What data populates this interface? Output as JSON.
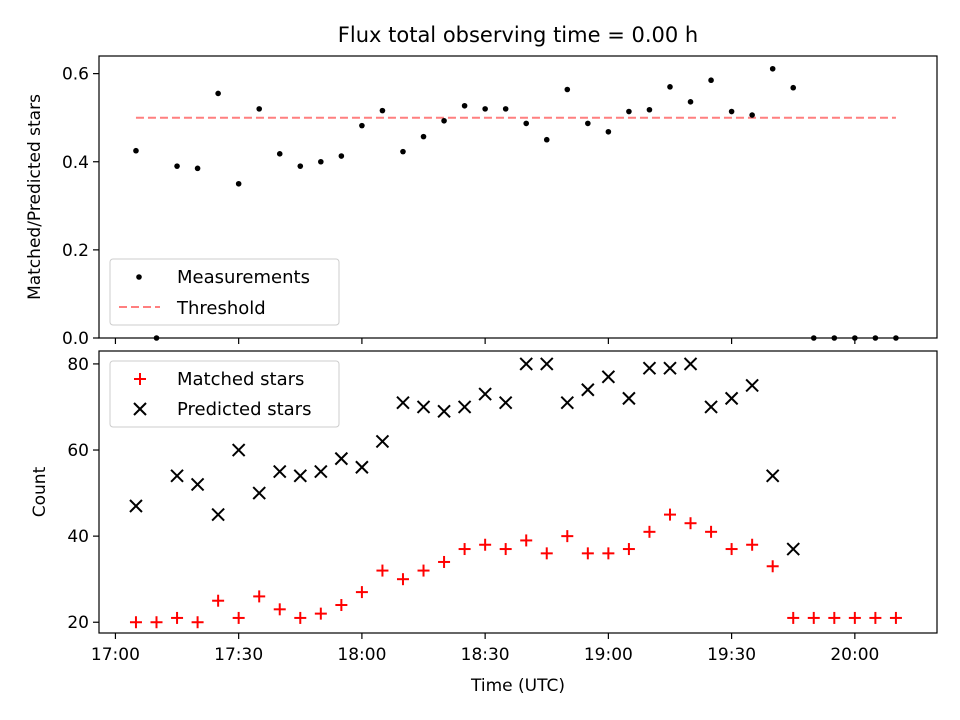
{
  "chart_data": [
    {
      "type": "scatter",
      "title": "Flux total observing time = 0.00 h",
      "xlabel": "",
      "ylabel": "Matched/Predicted stars",
      "xlim": [
        "16:56",
        "20:20"
      ],
      "ylim": [
        0,
        0.64
      ],
      "y_ticks": [
        "0.0",
        "0.2",
        "0.4",
        "0.6"
      ],
      "x_ticks": [
        "17:00",
        "17:30",
        "18:00",
        "18:30",
        "19:00",
        "19:30",
        "20:00"
      ],
      "legend_position": "lower-left",
      "threshold": {
        "name": "Threshold",
        "value": 0.5,
        "x_start": "17:05",
        "x_end": "20:10",
        "color": "#ff7f7f",
        "style": "dashed"
      },
      "series": [
        {
          "name": "Measurements",
          "marker": "dot",
          "color": "#000000",
          "x": [
            "17:05",
            "17:10",
            "17:15",
            "17:20",
            "17:25",
            "17:30",
            "17:35",
            "17:40",
            "17:45",
            "17:50",
            "17:55",
            "18:00",
            "18:05",
            "18:10",
            "18:15",
            "18:20",
            "18:25",
            "18:30",
            "18:35",
            "18:40",
            "18:45",
            "18:50",
            "18:55",
            "19:00",
            "19:05",
            "19:10",
            "19:15",
            "19:20",
            "19:25",
            "19:30",
            "19:35",
            "19:40",
            "19:45",
            "19:50",
            "19:55",
            "20:00",
            "20:05",
            "20:10"
          ],
          "y": [
            0.425,
            0.0,
            0.39,
            0.385,
            0.555,
            0.35,
            0.52,
            0.418,
            0.39,
            0.4,
            0.413,
            0.482,
            0.516,
            0.423,
            0.457,
            0.493,
            0.527,
            0.52,
            0.52,
            0.487,
            0.45,
            0.564,
            0.487,
            0.468,
            0.514,
            0.518,
            0.57,
            0.536,
            0.585,
            0.514,
            0.506,
            0.611,
            0.568,
            0.0,
            0.0,
            0.0,
            0.0,
            0.0
          ]
        }
      ]
    },
    {
      "type": "scatter",
      "title": "",
      "xlabel": "Time (UTC)",
      "ylabel": "Count",
      "xlim": [
        "16:56",
        "20:20"
      ],
      "ylim": [
        17.5,
        83
      ],
      "y_ticks": [
        "20",
        "40",
        "60",
        "80"
      ],
      "x_ticks": [
        "17:00",
        "17:30",
        "18:00",
        "18:30",
        "19:00",
        "19:30",
        "20:00"
      ],
      "legend_position": "top-left",
      "series": [
        {
          "name": "Matched stars",
          "marker": "plus",
          "color": "#ff0000",
          "x": [
            "17:05",
            "17:10",
            "17:15",
            "17:20",
            "17:25",
            "17:30",
            "17:35",
            "17:40",
            "17:45",
            "17:50",
            "17:55",
            "18:00",
            "18:05",
            "18:10",
            "18:15",
            "18:20",
            "18:25",
            "18:30",
            "18:35",
            "18:40",
            "18:45",
            "18:50",
            "18:55",
            "19:00",
            "19:05",
            "19:10",
            "19:15",
            "19:20",
            "19:25",
            "19:30",
            "19:35",
            "19:40",
            "19:45",
            "19:50",
            "19:55",
            "20:00",
            "20:05",
            "20:10"
          ],
          "y": [
            20,
            20,
            21,
            20,
            25,
            21,
            26,
            23,
            21,
            22,
            24,
            27,
            32,
            30,
            32,
            34,
            37,
            38,
            37,
            39,
            36,
            40,
            36,
            36,
            37,
            41,
            45,
            43,
            41,
            37,
            38,
            33,
            21,
            21,
            21,
            21,
            21,
            21
          ]
        },
        {
          "name": "Predicted stars",
          "marker": "x",
          "color": "#000000",
          "x": [
            "17:05",
            "17:15",
            "17:20",
            "17:25",
            "17:30",
            "17:35",
            "17:40",
            "17:45",
            "17:50",
            "17:55",
            "18:00",
            "18:05",
            "18:10",
            "18:15",
            "18:20",
            "18:25",
            "18:30",
            "18:35",
            "18:40",
            "18:45",
            "18:50",
            "18:55",
            "19:00",
            "19:05",
            "19:10",
            "19:15",
            "19:20",
            "19:25",
            "19:30",
            "19:35",
            "19:40",
            "19:45"
          ],
          "y": [
            47,
            54,
            52,
            45,
            60,
            50,
            55,
            54,
            55,
            58,
            56,
            62,
            71,
            70,
            69,
            70,
            73,
            71,
            80,
            80,
            71,
            74,
            77,
            72,
            79,
            79,
            80,
            70,
            72,
            75,
            54,
            37
          ]
        }
      ]
    }
  ]
}
